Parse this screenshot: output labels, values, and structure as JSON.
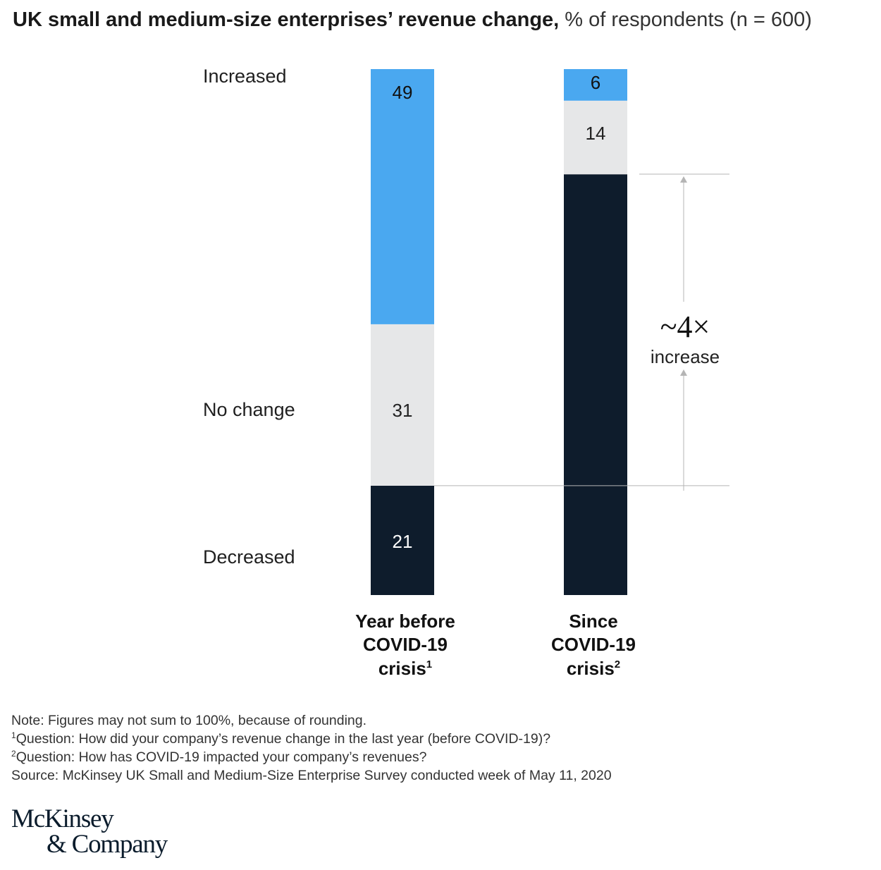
{
  "title": {
    "bold": "UK small and medium-size enterprises’ revenue change,",
    "sub": "% of respondents (n = 600)"
  },
  "colors": {
    "increased": "#4aa8f0",
    "no_change": "#e6e7e8",
    "decreased": "#0e1c2c"
  },
  "chart_data": {
    "type": "bar",
    "stacked": true,
    "categories": [
      {
        "lines": [
          "Year before",
          "COVID-19"
        ],
        "last": "crisis",
        "sup": "1"
      },
      {
        "lines": [
          "Since",
          "COVID-19"
        ],
        "last": "crisis",
        "sup": "2"
      }
    ],
    "series": [
      {
        "name": "Decreased",
        "values": [
          21,
          80
        ]
      },
      {
        "name": "No change",
        "values": [
          31,
          14
        ]
      },
      {
        "name": "Increased",
        "values": [
          49,
          6
        ]
      }
    ],
    "annotation": {
      "value": "~4×",
      "label": "increase"
    }
  },
  "notes": {
    "note": "Note: Figures may not sum to 100%, because of rounding.",
    "q1": {
      "sup": "1",
      "text": "Question: How did your company’s revenue change in the last year (before COVID-19)?"
    },
    "q2": {
      "sup": "2",
      "text": "Question: How has COVID-19 impacted your company’s revenues?"
    },
    "source": "Source: McKinsey UK Small and Medium-Size Enterprise Survey conducted week of May 11, 2020"
  },
  "logo": {
    "line1": "McKinsey",
    "line2": "& Company"
  }
}
